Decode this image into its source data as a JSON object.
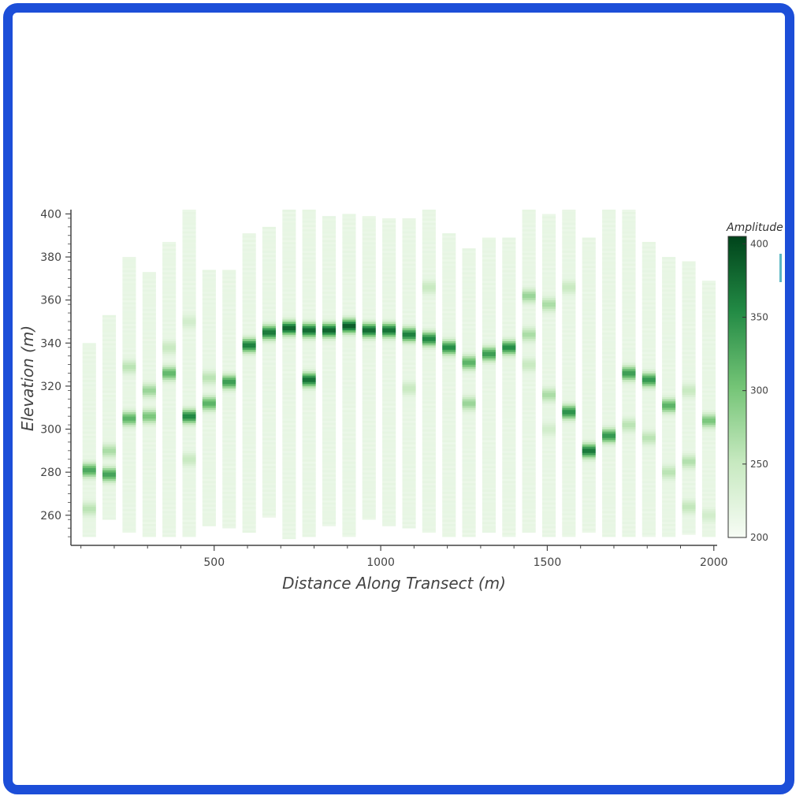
{
  "chart_data": {
    "type": "heatmap",
    "colormap": "Greens",
    "xlabel": "Distance Along Transect (m)",
    "ylabel": "Elevation (m)",
    "xlim": [
      70,
      2010
    ],
    "ylim": [
      246,
      402
    ],
    "x_ticks": [
      500,
      1000,
      1500,
      2000
    ],
    "y_ticks": [
      260,
      280,
      300,
      320,
      340,
      360,
      380,
      400
    ],
    "colorbar": {
      "title": "Amplitude",
      "range": [
        200,
        405
      ],
      "ticks": [
        200,
        250,
        300,
        350,
        400
      ],
      "colors": [
        "#f7fcf5",
        "#c7e9c0",
        "#74c476",
        "#238b45",
        "#00441b"
      ]
    },
    "grid": false,
    "column_width": 50,
    "columns": [
      {
        "x": 125,
        "y_min": 250,
        "y_max": 340,
        "peaks": [
          {
            "y": 281,
            "value": 330
          },
          {
            "y": 263,
            "value": 260
          }
        ]
      },
      {
        "x": 185,
        "y_min": 258,
        "y_max": 353,
        "peaks": [
          {
            "y": 279,
            "value": 335
          },
          {
            "y": 290,
            "value": 270
          }
        ]
      },
      {
        "x": 245,
        "y_min": 252,
        "y_max": 380,
        "peaks": [
          {
            "y": 305,
            "value": 320
          },
          {
            "y": 329,
            "value": 260
          }
        ]
      },
      {
        "x": 305,
        "y_min": 250,
        "y_max": 373,
        "peaks": [
          {
            "y": 306,
            "value": 300
          },
          {
            "y": 318,
            "value": 280
          }
        ]
      },
      {
        "x": 365,
        "y_min": 250,
        "y_max": 387,
        "peaks": [
          {
            "y": 326,
            "value": 315
          },
          {
            "y": 338,
            "value": 250
          }
        ]
      },
      {
        "x": 425,
        "y_min": 250,
        "y_max": 402,
        "peaks": [
          {
            "y": 306,
            "value": 360
          },
          {
            "y": 286,
            "value": 250
          },
          {
            "y": 350,
            "value": 240
          }
        ]
      },
      {
        "x": 485,
        "y_min": 255,
        "y_max": 374,
        "peaks": [
          {
            "y": 312,
            "value": 320
          },
          {
            "y": 324,
            "value": 260
          }
        ]
      },
      {
        "x": 545,
        "y_min": 254,
        "y_max": 374,
        "peaks": [
          {
            "y": 322,
            "value": 340
          }
        ]
      },
      {
        "x": 605,
        "y_min": 252,
        "y_max": 391,
        "peaks": [
          {
            "y": 339,
            "value": 365
          }
        ]
      },
      {
        "x": 665,
        "y_min": 259,
        "y_max": 394,
        "peaks": [
          {
            "y": 345,
            "value": 370
          }
        ]
      },
      {
        "x": 725,
        "y_min": 249,
        "y_max": 402,
        "peaks": [
          {
            "y": 347,
            "value": 385
          }
        ]
      },
      {
        "x": 785,
        "y_min": 250,
        "y_max": 402,
        "peaks": [
          {
            "y": 346,
            "value": 380
          },
          {
            "y": 323,
            "value": 375
          }
        ]
      },
      {
        "x": 845,
        "y_min": 255,
        "y_max": 399,
        "peaks": [
          {
            "y": 346,
            "value": 385
          }
        ]
      },
      {
        "x": 905,
        "y_min": 250,
        "y_max": 400,
        "peaks": [
          {
            "y": 348,
            "value": 390
          }
        ]
      },
      {
        "x": 965,
        "y_min": 258,
        "y_max": 399,
        "peaks": [
          {
            "y": 346,
            "value": 380
          }
        ]
      },
      {
        "x": 1025,
        "y_min": 255,
        "y_max": 398,
        "peaks": [
          {
            "y": 346,
            "value": 375
          }
        ]
      },
      {
        "x": 1085,
        "y_min": 254,
        "y_max": 398,
        "peaks": [
          {
            "y": 344,
            "value": 365
          },
          {
            "y": 319,
            "value": 250
          }
        ]
      },
      {
        "x": 1145,
        "y_min": 252,
        "y_max": 402,
        "peaks": [
          {
            "y": 342,
            "value": 360
          },
          {
            "y": 366,
            "value": 250
          }
        ]
      },
      {
        "x": 1205,
        "y_min": 250,
        "y_max": 391,
        "peaks": [
          {
            "y": 338,
            "value": 355
          }
        ]
      },
      {
        "x": 1265,
        "y_min": 250,
        "y_max": 384,
        "peaks": [
          {
            "y": 331,
            "value": 320
          },
          {
            "y": 312,
            "value": 280
          }
        ]
      },
      {
        "x": 1325,
        "y_min": 252,
        "y_max": 389,
        "peaks": [
          {
            "y": 335,
            "value": 340
          }
        ]
      },
      {
        "x": 1385,
        "y_min": 250,
        "y_max": 389,
        "peaks": [
          {
            "y": 338,
            "value": 355
          }
        ]
      },
      {
        "x": 1445,
        "y_min": 252,
        "y_max": 402,
        "peaks": [
          {
            "y": 362,
            "value": 280
          },
          {
            "y": 344,
            "value": 270
          },
          {
            "y": 330,
            "value": 250
          }
        ]
      },
      {
        "x": 1505,
        "y_min": 250,
        "y_max": 400,
        "peaks": [
          {
            "y": 316,
            "value": 270
          },
          {
            "y": 358,
            "value": 270
          },
          {
            "y": 300,
            "value": 240
          }
        ]
      },
      {
        "x": 1565,
        "y_min": 250,
        "y_max": 402,
        "peaks": [
          {
            "y": 308,
            "value": 350
          },
          {
            "y": 366,
            "value": 250
          }
        ]
      },
      {
        "x": 1625,
        "y_min": 252,
        "y_max": 389,
        "peaks": [
          {
            "y": 290,
            "value": 370
          }
        ]
      },
      {
        "x": 1685,
        "y_min": 250,
        "y_max": 402,
        "peaks": [
          {
            "y": 297,
            "value": 345
          }
        ]
      },
      {
        "x": 1745,
        "y_min": 250,
        "y_max": 402,
        "peaks": [
          {
            "y": 326,
            "value": 340
          },
          {
            "y": 302,
            "value": 260
          }
        ]
      },
      {
        "x": 1805,
        "y_min": 250,
        "y_max": 387,
        "peaks": [
          {
            "y": 323,
            "value": 345
          },
          {
            "y": 296,
            "value": 260
          }
        ]
      },
      {
        "x": 1865,
        "y_min": 250,
        "y_max": 380,
        "peaks": [
          {
            "y": 311,
            "value": 320
          },
          {
            "y": 280,
            "value": 260
          }
        ]
      },
      {
        "x": 1925,
        "y_min": 251,
        "y_max": 378,
        "peaks": [
          {
            "y": 285,
            "value": 265
          },
          {
            "y": 318,
            "value": 250
          },
          {
            "y": 264,
            "value": 255
          }
        ]
      },
      {
        "x": 1985,
        "y_min": 250,
        "y_max": 369,
        "peaks": [
          {
            "y": 304,
            "value": 300
          },
          {
            "y": 260,
            "value": 240
          }
        ]
      }
    ]
  }
}
